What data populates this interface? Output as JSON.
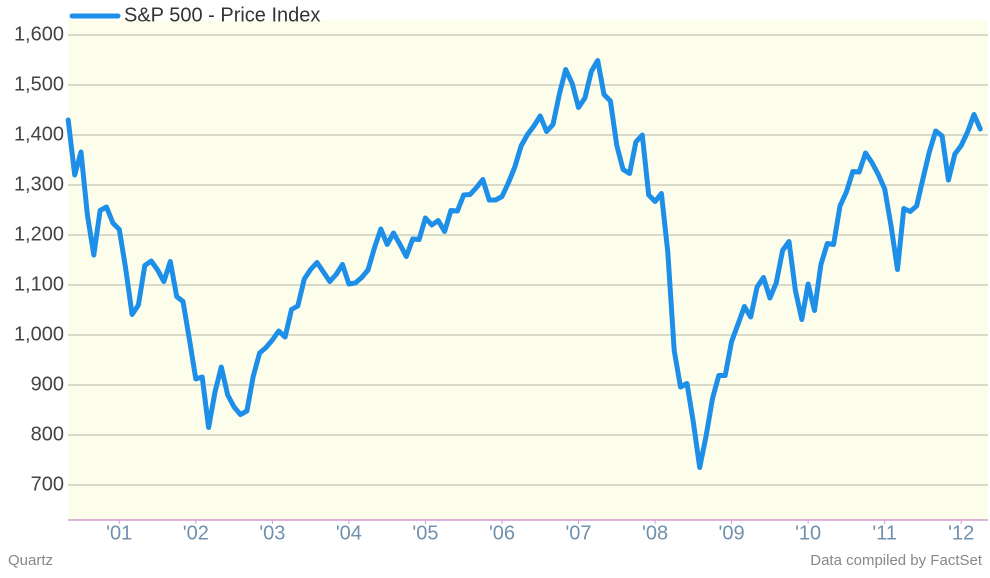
{
  "chart_data": {
    "type": "line",
    "series": [
      {
        "name": "S&P 500 - Price Index",
        "color": "#1e8fe8",
        "values": [
          1430,
          1320,
          1366,
          1240,
          1160,
          1249,
          1256,
          1224,
          1211,
          1134,
          1041,
          1060,
          1139,
          1148,
          1130,
          1107,
          1147,
          1077,
          1067,
          990,
          912,
          916,
          815,
          886,
          936,
          880,
          856,
          841,
          848,
          917,
          964,
          975,
          990,
          1008,
          996,
          1051,
          1058,
          1112,
          1131,
          1145,
          1126,
          1107,
          1121,
          1141,
          1102,
          1104,
          1115,
          1130,
          1174,
          1212,
          1181,
          1204,
          1181,
          1157,
          1192,
          1191,
          1234,
          1220,
          1229,
          1207,
          1249,
          1248,
          1280,
          1281,
          1295,
          1311,
          1270,
          1270,
          1277,
          1304,
          1336,
          1378,
          1401,
          1418,
          1438,
          1407,
          1421,
          1482,
          1531,
          1503,
          1455,
          1474,
          1527,
          1549,
          1481,
          1468,
          1379,
          1331,
          1323,
          1386,
          1400,
          1280,
          1267,
          1283,
          1166,
          969,
          896,
          903,
          826,
          735,
          798,
          873,
          919,
          919,
          987,
          1021,
          1057,
          1036,
          1096,
          1115,
          1074,
          1104,
          1169,
          1187,
          1089,
          1031,
          1102,
          1049,
          1141,
          1183,
          1181,
          1258,
          1286,
          1327,
          1326,
          1364,
          1345,
          1321,
          1292,
          1219,
          1131,
          1253,
          1247,
          1258,
          1312,
          1366,
          1408,
          1398,
          1310,
          1362,
          1379,
          1406,
          1441,
          1412
        ]
      }
    ],
    "x": [
      2000.833,
      2000.917,
      2001.0,
      2001.083,
      2001.167,
      2001.25,
      2001.333,
      2001.417,
      2001.5,
      2001.583,
      2001.667,
      2001.75,
      2001.833,
      2001.917,
      2002.0,
      2002.083,
      2002.167,
      2002.25,
      2002.333,
      2002.417,
      2002.5,
      2002.583,
      2002.667,
      2002.75,
      2002.833,
      2002.917,
      2003.0,
      2003.083,
      2003.167,
      2003.25,
      2003.333,
      2003.417,
      2003.5,
      2003.583,
      2003.667,
      2003.75,
      2003.833,
      2003.917,
      2004.0,
      2004.083,
      2004.167,
      2004.25,
      2004.333,
      2004.417,
      2004.5,
      2004.583,
      2004.667,
      2004.75,
      2004.833,
      2004.917,
      2005.0,
      2005.083,
      2005.167,
      2005.25,
      2005.333,
      2005.417,
      2005.5,
      2005.583,
      2005.667,
      2005.75,
      2005.833,
      2005.917,
      2006.0,
      2006.083,
      2006.167,
      2006.25,
      2006.333,
      2006.417,
      2006.5,
      2006.583,
      2006.667,
      2006.75,
      2006.833,
      2006.917,
      2007.0,
      2007.083,
      2007.167,
      2007.25,
      2007.333,
      2007.417,
      2007.5,
      2007.583,
      2007.667,
      2007.75,
      2007.833,
      2007.917,
      2008.0,
      2008.083,
      2008.167,
      2008.25,
      2008.333,
      2008.417,
      2008.5,
      2008.583,
      2008.667,
      2008.75,
      2008.833,
      2008.917,
      2009.0,
      2009.083,
      2009.167,
      2009.25,
      2009.333,
      2009.417,
      2009.5,
      2009.583,
      2009.667,
      2009.75,
      2009.833,
      2009.917,
      2010.0,
      2010.083,
      2010.167,
      2010.25,
      2010.333,
      2010.417,
      2010.5,
      2010.583,
      2010.667,
      2010.75,
      2010.833,
      2010.917,
      2011.0,
      2011.083,
      2011.167,
      2011.25,
      2011.333,
      2011.417,
      2011.5,
      2011.583,
      2011.667,
      2011.75,
      2011.833,
      2011.917,
      2012.0,
      2012.083,
      2012.167,
      2012.25,
      2012.333,
      2012.417,
      2012.5,
      2012.583,
      2012.667,
      2012.75
    ],
    "xlim": [
      2000.83,
      2012.85
    ],
    "xticks": [
      {
        "value": 2001.5,
        "label": "'01"
      },
      {
        "value": 2002.5,
        "label": "'02"
      },
      {
        "value": 2003.5,
        "label": "'03"
      },
      {
        "value": 2004.5,
        "label": "'04"
      },
      {
        "value": 2005.5,
        "label": "'05"
      },
      {
        "value": 2006.5,
        "label": "'06"
      },
      {
        "value": 2007.5,
        "label": "'07"
      },
      {
        "value": 2008.5,
        "label": "'08"
      },
      {
        "value": 2009.5,
        "label": "'09"
      },
      {
        "value": 2010.5,
        "label": "'10"
      },
      {
        "value": 2011.5,
        "label": "'11"
      },
      {
        "value": 2012.5,
        "label": "'12"
      }
    ],
    "ylim": [
      630,
      1630
    ],
    "yticks": [
      700,
      800,
      900,
      {
        "value": 1000,
        "label": "1,000"
      },
      {
        "value": 1100,
        "label": "1,100"
      },
      {
        "value": 1200,
        "label": "1,200"
      },
      {
        "value": 1300,
        "label": "1,300"
      },
      {
        "value": 1400,
        "label": "1,400"
      },
      {
        "value": 1500,
        "label": "1,500"
      },
      {
        "value": 1600,
        "label": "1,600"
      }
    ],
    "grid": true,
    "legend": "top-left",
    "source_left": "Quartz",
    "source_right": "Data compiled by FactSet"
  }
}
